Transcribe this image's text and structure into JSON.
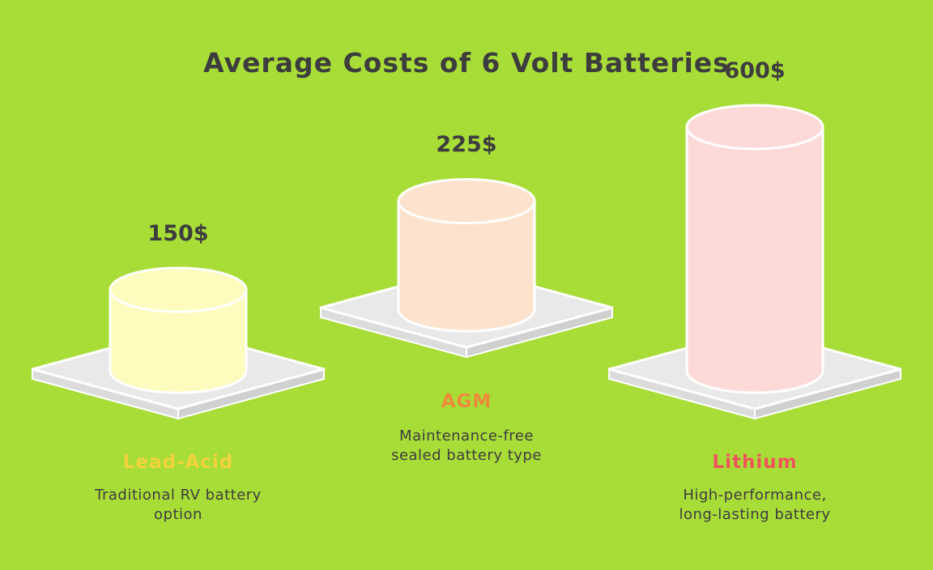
{
  "chart_data": {
    "type": "bar",
    "title": "Average Costs of 6 Volt Batteries",
    "categories": [
      "Lead-Acid",
      "AGM",
      "Lithium"
    ],
    "values": [
      150,
      225,
      600
    ],
    "value_labels": [
      "150$",
      "225$",
      "600$"
    ],
    "descriptions": [
      [
        "Traditional RV battery",
        "option"
      ],
      [
        "Maintenance-free",
        "sealed battery type"
      ],
      [
        "High-performance,",
        "long-lasting battery"
      ]
    ],
    "colors": {
      "cylinders": [
        "#fdfbbe",
        "#fde3cd",
        "#fddad8"
      ],
      "labels": [
        "#f2d23c",
        "#ee8a3a",
        "#f0545a"
      ],
      "background": "#a8dd38"
    }
  }
}
